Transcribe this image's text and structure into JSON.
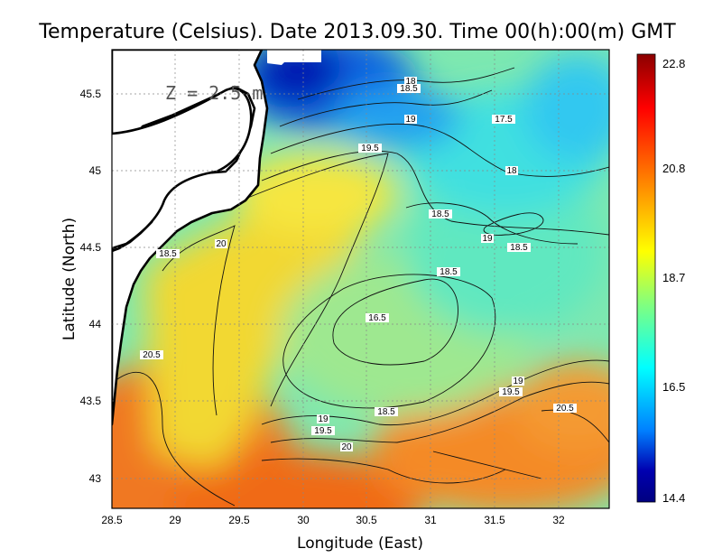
{
  "title": "Temperature (Celsius). Date 2013.09.30. Time 00(h):00(m)  GMT",
  "depth_label": "Z = 2.5 m",
  "x_axis": {
    "label": "Longitude (East)",
    "ticks": [
      "28.5",
      "29",
      "29.5",
      "30",
      "30.5",
      "31",
      "31.5",
      "32"
    ]
  },
  "y_axis": {
    "label": "Latitude (North)",
    "ticks": [
      "43",
      "43.5",
      "44",
      "44.5",
      "45",
      "45.5"
    ]
  },
  "colorbar": {
    "labels": [
      "22.8",
      "20.8",
      "18.7",
      "16.5",
      "14.4"
    ],
    "colors": [
      "#8b0000",
      "#ff0000",
      "#ff8000",
      "#ffff00",
      "#80ff80",
      "#00ffff",
      "#0080ff",
      "#0000b0",
      "#000080"
    ]
  },
  "contour_labels": [
    "18",
    "18.5",
    "19",
    "17.5",
    "19.5",
    "18",
    "18.5",
    "19",
    "18.5",
    "20",
    "18.5",
    "18.5",
    "16.5",
    "20.5",
    "19",
    "19.5",
    "20.5",
    "19",
    "19.5",
    "18.5",
    "20"
  ]
}
